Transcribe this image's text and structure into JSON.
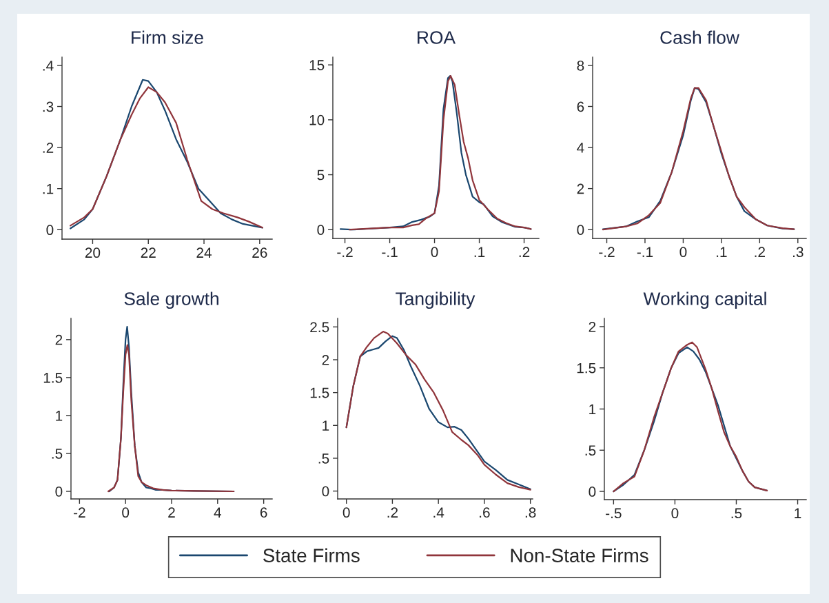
{
  "chart_data": [
    {
      "type": "line",
      "title": "Firm size",
      "legend": "bottom",
      "xlim": [
        18.9,
        26.45
      ],
      "ylim": [
        -0.023,
        0.42
      ],
      "xticks": [
        20,
        22,
        24,
        26
      ],
      "yticks": [
        0,
        {
          "value": 0.1,
          "label": ".1"
        },
        {
          "value": 0.2,
          "label": ".2"
        },
        {
          "value": 0.3,
          "label": ".3"
        },
        {
          "value": 0.4,
          "label": ".4"
        }
      ],
      "series": [
        {
          "name": "State Firms",
          "color": "#1a476f",
          "x": [
            19.2,
            19.7,
            20.0,
            20.5,
            21.0,
            21.4,
            21.8,
            22.0,
            22.3,
            22.6,
            23.0,
            23.4,
            23.8,
            24.2,
            24.6,
            25.0,
            25.4,
            26.1
          ],
          "values": [
            0.003,
            0.025,
            0.05,
            0.13,
            0.22,
            0.3,
            0.365,
            0.362,
            0.335,
            0.29,
            0.22,
            0.165,
            0.1,
            0.07,
            0.04,
            0.025,
            0.014,
            0.005
          ]
        },
        {
          "name": "Non-State Firms",
          "color": "#90353b",
          "x": [
            19.2,
            19.7,
            20.0,
            20.5,
            21.0,
            21.4,
            21.7,
            22.0,
            22.3,
            22.6,
            23.0,
            23.4,
            23.9,
            24.3,
            24.7,
            25.2,
            25.6,
            26.1
          ],
          "values": [
            0.01,
            0.03,
            0.05,
            0.13,
            0.22,
            0.28,
            0.32,
            0.347,
            0.335,
            0.31,
            0.26,
            0.17,
            0.07,
            0.05,
            0.04,
            0.03,
            0.02,
            0.005
          ]
        }
      ]
    },
    {
      "type": "line",
      "title": "ROA",
      "xlim": [
        -0.227,
        0.233
      ],
      "ylim": [
        -0.8,
        15.7
      ],
      "xticks": [
        {
          "value": -0.2,
          "label": "-.2"
        },
        {
          "value": -0.1,
          "label": "-.1"
        },
        0,
        {
          "value": 0.1,
          "label": ".1"
        },
        {
          "value": 0.2,
          "label": ".2"
        }
      ],
      "yticks": [
        0,
        5,
        10,
        15
      ],
      "series": [
        {
          "color": "#1a476f",
          "x": [
            -0.21,
            -0.18,
            -0.1,
            -0.07,
            -0.05,
            -0.03,
            -0.01,
            0.0,
            0.01,
            0.02,
            0.03,
            0.035,
            0.04,
            0.05,
            0.06,
            0.07,
            0.085,
            0.1,
            0.11,
            0.13,
            0.15,
            0.18,
            0.2,
            0.215
          ],
          "values": [
            0.05,
            0.0,
            0.2,
            0.3,
            0.7,
            0.9,
            1.2,
            1.5,
            4,
            11,
            13.8,
            14.0,
            13.5,
            10.5,
            7,
            5,
            3,
            2.5,
            2.3,
            1.2,
            0.7,
            0.25,
            0.2,
            0.05
          ]
        },
        {
          "color": "#90353b",
          "x": [
            -0.19,
            -0.1,
            -0.07,
            -0.05,
            -0.035,
            -0.02,
            0.0,
            0.01,
            0.02,
            0.03,
            0.036,
            0.045,
            0.055,
            0.065,
            0.075,
            0.085,
            0.1,
            0.12,
            0.14,
            0.16,
            0.18,
            0.2,
            0.215
          ],
          "values": [
            0.0,
            0.2,
            0.2,
            0.4,
            0.5,
            1.0,
            1.5,
            3.5,
            10,
            13.5,
            14.0,
            13.2,
            10.5,
            8,
            6.5,
            4.5,
            2.7,
            1.8,
            1.0,
            0.6,
            0.3,
            0.2,
            0.05
          ]
        }
      ]
    },
    {
      "type": "line",
      "title": "Cash flow",
      "xlim": [
        -0.237,
        0.322
      ],
      "ylim": [
        -0.43,
        8.4
      ],
      "xticks": [
        {
          "value": -0.2,
          "label": "-.2"
        },
        {
          "value": -0.1,
          "label": "-.1"
        },
        0,
        {
          "value": 0.1,
          "label": ".1"
        },
        {
          "value": 0.2,
          "label": ".2"
        },
        {
          "value": 0.3,
          "label": ".3"
        }
      ],
      "yticks": [
        0,
        2,
        4,
        6,
        8
      ],
      "series": [
        {
          "color": "#1a476f",
          "x": [
            -0.21,
            -0.15,
            -0.12,
            -0.09,
            -0.06,
            -0.03,
            0.0,
            0.02,
            0.03,
            0.04,
            0.06,
            0.08,
            0.1,
            0.12,
            0.14,
            0.16,
            0.19,
            0.22,
            0.26,
            0.29
          ],
          "values": [
            0.02,
            0.15,
            0.4,
            0.6,
            1.4,
            2.8,
            4.6,
            6.3,
            6.9,
            6.85,
            6.2,
            5.0,
            3.7,
            2.6,
            1.6,
            0.9,
            0.5,
            0.2,
            0.05,
            0.02
          ]
        },
        {
          "color": "#90353b",
          "x": [
            -0.21,
            -0.15,
            -0.12,
            -0.09,
            -0.06,
            -0.03,
            0.0,
            0.02,
            0.03,
            0.04,
            0.06,
            0.08,
            0.1,
            0.12,
            0.14,
            0.16,
            0.19,
            0.22,
            0.26,
            0.29
          ],
          "values": [
            0.0,
            0.15,
            0.3,
            0.7,
            1.3,
            2.8,
            4.8,
            6.4,
            6.9,
            6.9,
            6.3,
            5.0,
            3.8,
            2.6,
            1.6,
            1.1,
            0.5,
            0.2,
            0.07,
            0.02
          ]
        }
      ]
    },
    {
      "type": "line",
      "title": "Sale growth",
      "xlim": [
        -2.37,
        6.37
      ],
      "ylim": [
        -0.1,
        2.28
      ],
      "xticks": [
        -2,
        0,
        2,
        4,
        6
      ],
      "yticks": [
        0,
        {
          "value": 0.5,
          "label": ".5"
        },
        1,
        1.5,
        2
      ],
      "series": [
        {
          "color": "#1a476f",
          "x": [
            -0.7,
            -0.5,
            -0.35,
            -0.2,
            -0.1,
            0.0,
            0.07,
            0.15,
            0.25,
            0.4,
            0.55,
            0.7,
            0.9,
            1.1,
            1.3,
            1.6,
            2.0,
            3.0,
            4.7
          ],
          "values": [
            0.0,
            0.05,
            0.15,
            0.7,
            1.4,
            2.0,
            2.17,
            1.9,
            1.3,
            0.6,
            0.25,
            0.12,
            0.05,
            0.04,
            0.02,
            0.02,
            0.01,
            0.005,
            0.0
          ]
        },
        {
          "color": "#90353b",
          "x": [
            -0.75,
            -0.5,
            -0.35,
            -0.2,
            -0.1,
            0.0,
            0.08,
            0.15,
            0.25,
            0.4,
            0.55,
            0.7,
            0.9,
            1.2,
            1.6,
            2.0,
            3.0,
            4.7
          ],
          "values": [
            0.0,
            0.05,
            0.15,
            0.7,
            1.3,
            1.8,
            1.93,
            1.8,
            1.2,
            0.6,
            0.2,
            0.12,
            0.08,
            0.04,
            0.02,
            0.01,
            0.005,
            0.0
          ]
        }
      ]
    },
    {
      "type": "line",
      "title": "Tangibility",
      "xlim": [
        -0.038,
        0.81
      ],
      "ylim": [
        -0.12,
        2.63
      ],
      "xticks": [
        0,
        {
          "value": 0.2,
          "label": ".2"
        },
        {
          "value": 0.4,
          "label": ".4"
        },
        {
          "value": 0.6,
          "label": ".6"
        },
        {
          "value": 0.8,
          "label": ".8"
        }
      ],
      "yticks": [
        0,
        {
          "value": 0.5,
          "label": ".5"
        },
        1,
        1.5,
        2,
        2.5
      ],
      "series": [
        {
          "color": "#1a476f",
          "x": [
            0.0,
            0.03,
            0.06,
            0.09,
            0.12,
            0.14,
            0.17,
            0.2,
            0.22,
            0.25,
            0.28,
            0.32,
            0.36,
            0.4,
            0.44,
            0.47,
            0.5,
            0.53,
            0.57,
            0.6,
            0.65,
            0.7,
            0.75,
            0.8
          ],
          "values": [
            0.97,
            1.6,
            2.05,
            2.13,
            2.16,
            2.18,
            2.28,
            2.36,
            2.33,
            2.15,
            1.9,
            1.6,
            1.25,
            1.05,
            0.97,
            0.98,
            0.93,
            0.8,
            0.6,
            0.45,
            0.32,
            0.17,
            0.1,
            0.03
          ]
        },
        {
          "color": "#90353b",
          "x": [
            0.0,
            0.03,
            0.06,
            0.09,
            0.12,
            0.16,
            0.18,
            0.22,
            0.26,
            0.3,
            0.34,
            0.38,
            0.42,
            0.46,
            0.5,
            0.53,
            0.57,
            0.6,
            0.65,
            0.7,
            0.75,
            0.8
          ],
          "values": [
            0.97,
            1.6,
            2.05,
            2.2,
            2.33,
            2.43,
            2.4,
            2.25,
            2.07,
            1.93,
            1.7,
            1.5,
            1.23,
            0.9,
            0.78,
            0.7,
            0.55,
            0.4,
            0.25,
            0.12,
            0.06,
            0.02
          ]
        }
      ]
    },
    {
      "type": "line",
      "title": "Working capital",
      "xlim": [
        -0.575,
        1.07
      ],
      "ylim": [
        -0.1,
        2.1
      ],
      "xticks": [
        {
          "value": -0.5,
          "label": "-.5"
        },
        0,
        {
          "value": 0.5,
          "label": ".5"
        },
        1
      ],
      "yticks": [
        0,
        {
          "value": 0.5,
          "label": ".5"
        },
        1,
        1.5,
        2
      ],
      "series": [
        {
          "color": "#1a476f",
          "x": [
            -0.5,
            -0.42,
            -0.33,
            -0.25,
            -0.17,
            -0.1,
            -0.03,
            0.03,
            0.1,
            0.15,
            0.2,
            0.25,
            0.3,
            0.35,
            0.4,
            0.45,
            0.5,
            0.55,
            0.6,
            0.65,
            0.75
          ],
          "values": [
            0.0,
            0.08,
            0.2,
            0.5,
            0.85,
            1.2,
            1.5,
            1.68,
            1.75,
            1.7,
            1.6,
            1.45,
            1.25,
            1.05,
            0.8,
            0.55,
            0.4,
            0.25,
            0.12,
            0.05,
            0.01
          ]
        },
        {
          "color": "#90353b",
          "x": [
            -0.5,
            -0.42,
            -0.33,
            -0.25,
            -0.17,
            -0.1,
            -0.03,
            0.03,
            0.1,
            0.14,
            0.18,
            0.25,
            0.3,
            0.35,
            0.4,
            0.45,
            0.5,
            0.55,
            0.6,
            0.65,
            0.75
          ],
          "values": [
            0.0,
            0.1,
            0.18,
            0.5,
            0.9,
            1.2,
            1.5,
            1.7,
            1.78,
            1.81,
            1.75,
            1.48,
            1.25,
            0.98,
            0.72,
            0.55,
            0.42,
            0.25,
            0.12,
            0.05,
            0.01
          ]
        }
      ]
    }
  ]
}
